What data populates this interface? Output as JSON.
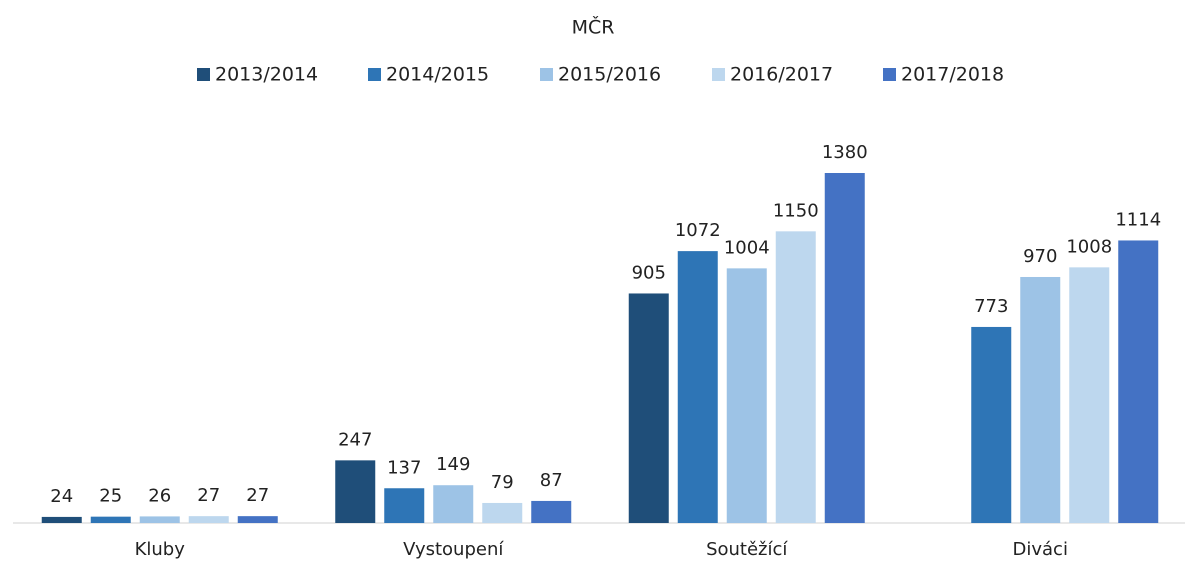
{
  "chart_data": {
    "type": "bar",
    "title": "MČR",
    "categories": [
      "Kluby",
      "Vystoupení",
      "Soutěžící",
      "Diváci"
    ],
    "series": [
      {
        "name": "2013/2014",
        "color": "#1f4e79",
        "values": [
          24,
          247,
          905,
          null
        ]
      },
      {
        "name": "2014/2015",
        "color": "#2e75b6",
        "values": [
          25,
          137,
          1072,
          773
        ]
      },
      {
        "name": "2015/2016",
        "color": "#9dc3e6",
        "values": [
          26,
          149,
          1004,
          970
        ]
      },
      {
        "name": "2016/2017",
        "color": "#bdd7ee",
        "values": [
          27,
          79,
          1150,
          1008
        ]
      },
      {
        "name": "2017/2018",
        "color": "#4472c4",
        "values": [
          27,
          87,
          1380,
          1114
        ]
      }
    ],
    "legend": "top"
  }
}
